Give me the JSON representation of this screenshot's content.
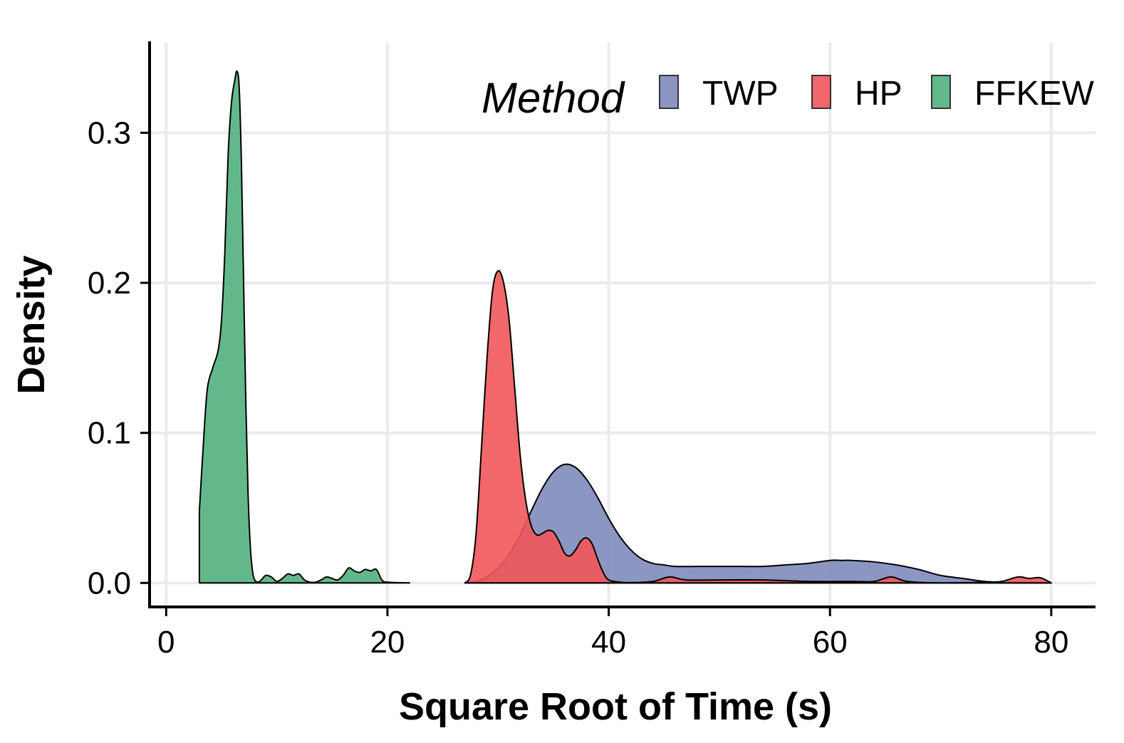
{
  "chart_data": {
    "type": "area",
    "subtype": "density",
    "xlabel": "Square Root of Time (s)",
    "ylabel": "Density",
    "xlim": [
      -1.5,
      84
    ],
    "ylim": [
      -0.016,
      0.36
    ],
    "x_ticks": [
      0,
      20,
      40,
      60,
      80
    ],
    "x_tick_labels": [
      "0",
      "20",
      "40",
      "60",
      "80"
    ],
    "y_ticks": [
      0.0,
      0.1,
      0.2,
      0.3
    ],
    "y_tick_labels": [
      "0.0",
      "0.1",
      "0.2",
      "0.3"
    ],
    "grid": true,
    "legend": {
      "title": "Method",
      "position": "top-right",
      "orientation": "horizontal"
    },
    "colors": {
      "TWP": "#7f8bbd",
      "HP": "#f0575a",
      "FFKEW": "#52b07e"
    },
    "series": [
      {
        "name": "TWP",
        "color": "#7f8bbd",
        "x": [
          27,
          28,
          29,
          30,
          31,
          32,
          33,
          34,
          35,
          36,
          37,
          38,
          39,
          40,
          41,
          42,
          43,
          44,
          45,
          46,
          48,
          50,
          52,
          54,
          56,
          58,
          60,
          61,
          62,
          64,
          66,
          68,
          70,
          72,
          74,
          76,
          78,
          80
        ],
        "y": [
          0.0,
          0.001,
          0.004,
          0.01,
          0.019,
          0.032,
          0.048,
          0.063,
          0.074,
          0.079,
          0.077,
          0.069,
          0.057,
          0.043,
          0.031,
          0.022,
          0.016,
          0.013,
          0.012,
          0.011,
          0.011,
          0.011,
          0.011,
          0.011,
          0.012,
          0.013,
          0.015,
          0.015,
          0.015,
          0.014,
          0.012,
          0.009,
          0.005,
          0.003,
          0.001,
          0.0005,
          0.0002,
          0.0
        ]
      },
      {
        "name": "HP",
        "color": "#f0575a",
        "x": [
          27,
          27.5,
          28,
          28.5,
          29,
          29.5,
          30,
          30.5,
          31,
          31.5,
          32,
          32.5,
          33,
          33.5,
          34,
          34.5,
          35,
          35.5,
          36,
          36.5,
          37,
          37.5,
          38,
          38.5,
          39,
          39.5,
          40,
          41,
          42,
          44,
          45.5,
          47,
          50,
          54,
          58,
          62,
          64,
          65.5,
          67,
          70,
          74,
          75.5,
          77,
          78,
          79,
          80
        ],
        "y": [
          0.0,
          0.005,
          0.032,
          0.09,
          0.15,
          0.195,
          0.208,
          0.2,
          0.175,
          0.13,
          0.085,
          0.055,
          0.038,
          0.032,
          0.033,
          0.035,
          0.034,
          0.028,
          0.02,
          0.018,
          0.022,
          0.028,
          0.03,
          0.026,
          0.016,
          0.007,
          0.002,
          0.0005,
          0.0002,
          0.001,
          0.004,
          0.002,
          0.002,
          0.002,
          0.001,
          0.001,
          0.001,
          0.004,
          0.001,
          0.0,
          0.0005,
          0.001,
          0.004,
          0.003,
          0.0035,
          0.0
        ]
      },
      {
        "name": "FFKEW",
        "color": "#52b07e",
        "x": [
          3,
          3.3,
          3.7,
          4.2,
          4.7,
          5,
          5.3,
          5.6,
          5.9,
          6.2,
          6.4,
          6.6,
          6.8,
          7,
          7.2,
          7.4,
          7.6,
          7.8,
          8,
          8.3,
          8.6,
          9,
          9.5,
          10,
          10.5,
          11,
          11.5,
          12,
          12.5,
          13,
          13.5,
          14,
          14.5,
          15,
          15.5,
          16,
          16.5,
          17,
          17.5,
          18,
          18.5,
          19,
          19.5,
          20,
          22
        ],
        "y": [
          0.048,
          0.085,
          0.128,
          0.143,
          0.155,
          0.175,
          0.22,
          0.285,
          0.32,
          0.335,
          0.341,
          0.33,
          0.28,
          0.2,
          0.12,
          0.06,
          0.025,
          0.008,
          0.002,
          0.0005,
          0.002,
          0.005,
          0.004,
          0.001,
          0.003,
          0.006,
          0.005,
          0.006,
          0.002,
          0.0005,
          0.0005,
          0.002,
          0.004,
          0.003,
          0.002,
          0.005,
          0.01,
          0.008,
          0.007,
          0.009,
          0.008,
          0.009,
          0.002,
          0.0005,
          0.0
        ]
      }
    ]
  }
}
